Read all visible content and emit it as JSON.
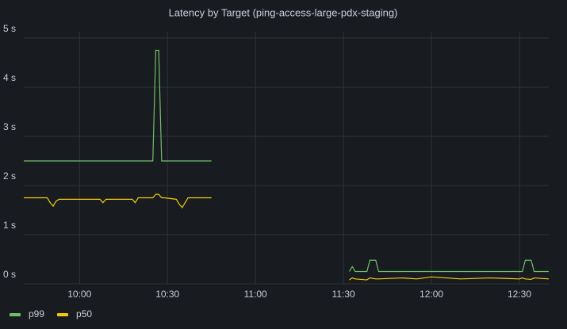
{
  "chart_data": {
    "type": "line",
    "title": "Latency by Target (ping-access-large-pdx-staging)",
    "x": [
      "09:41",
      "09:49",
      "09:50",
      "09:51",
      "09:52",
      "09:53",
      "10:07",
      "10:08",
      "10:09",
      "10:18",
      "10:19",
      "10:20",
      "10:25",
      "10:26",
      "10:27",
      "10:28",
      "10:29",
      "10:33",
      "10:34",
      "10:35",
      "10:36",
      "10:37",
      "10:45",
      "11:00",
      "11:32",
      "11:33",
      "11:34",
      "11:38",
      "11:39",
      "11:41",
      "11:42",
      "11:50",
      "11:55",
      "12:00",
      "12:05",
      "12:10",
      "12:20",
      "12:30",
      "12:31",
      "12:32",
      "12:34",
      "12:35",
      "12:40"
    ],
    "series": [
      {
        "name": "p99",
        "color": "#73bf69",
        "values": [
          2.5,
          2.5,
          2.5,
          2.5,
          2.5,
          2.5,
          2.5,
          2.5,
          2.5,
          2.5,
          2.5,
          2.5,
          2.5,
          4.75,
          4.75,
          2.5,
          2.5,
          2.5,
          2.5,
          2.5,
          2.5,
          2.5,
          2.5,
          null,
          0.25,
          0.35,
          0.25,
          0.25,
          0.48,
          0.48,
          0.25,
          0.25,
          0.25,
          0.25,
          0.25,
          0.25,
          0.25,
          0.25,
          0.25,
          0.48,
          0.48,
          0.25,
          0.25
        ]
      },
      {
        "name": "p50",
        "color": "#f2cc0c",
        "values": [
          1.75,
          1.75,
          1.65,
          1.58,
          1.68,
          1.72,
          1.72,
          1.65,
          1.72,
          1.72,
          1.65,
          1.75,
          1.75,
          1.82,
          1.82,
          1.75,
          1.75,
          1.72,
          1.62,
          1.55,
          1.65,
          1.75,
          1.75,
          null,
          0.08,
          0.12,
          0.1,
          0.08,
          0.12,
          0.1,
          0.1,
          0.12,
          0.1,
          0.14,
          0.12,
          0.1,
          0.12,
          0.1,
          0.12,
          0.1,
          0.09,
          0.12,
          0.1
        ]
      }
    ],
    "xlim": [
      "09:41",
      "12:40"
    ],
    "xticks": [
      "10:00",
      "10:30",
      "11:00",
      "11:30",
      "12:00",
      "12:30"
    ],
    "ylim": [
      0,
      5
    ],
    "yticks": [
      {
        "value": 0,
        "label": "0 s"
      },
      {
        "value": 1,
        "label": "1 s"
      },
      {
        "value": 2,
        "label": "2 s"
      },
      {
        "value": 3,
        "label": "3 s"
      },
      {
        "value": 4,
        "label": "4 s"
      },
      {
        "value": 5,
        "label": "5 s"
      }
    ],
    "grid": true,
    "legend": "bottom-left"
  }
}
